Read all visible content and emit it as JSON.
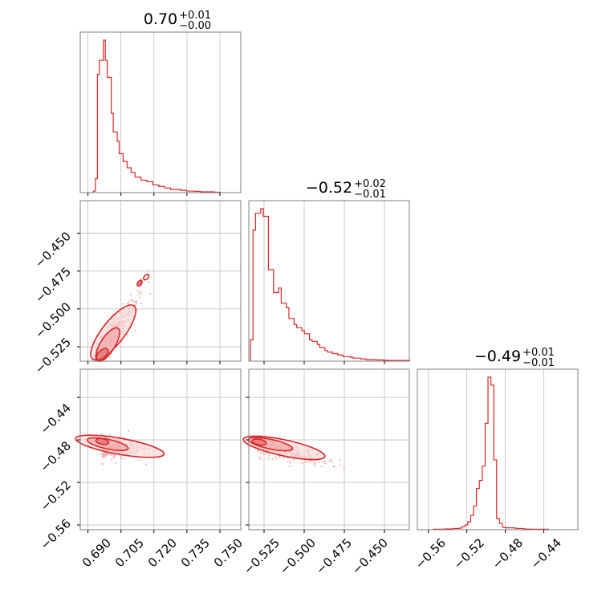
{
  "colors": {
    "accent": "#d62728",
    "fill_inner": "#ee9a9b",
    "fill_outer": "#f6d0d0",
    "scatter": "#f2b8b8",
    "grid": "#bdbdbd",
    "frame": "#7f7f7f"
  },
  "chart_data": {
    "type": "corner",
    "grid": true,
    "parameters": [
      {
        "title": {
          "main": "0.70",
          "upper": "+0.01",
          "lower": "−0.00"
        },
        "ticks": [
          0.69,
          0.705,
          0.72,
          0.735,
          0.75
        ],
        "tick_labels": [
          "0.690",
          "0.705",
          "0.720",
          "0.735",
          "0.750"
        ],
        "range": [
          0.6865,
          0.7595
        ]
      },
      {
        "title": {
          "main": "−0.52",
          "upper": "+0.02",
          "lower": "−0.01"
        },
        "ticks": [
          -0.525,
          -0.5,
          -0.475,
          -0.45
        ],
        "tick_labels": [
          "−0.525",
          "−0.500",
          "−0.475",
          "−0.450"
        ],
        "range": [
          -0.5345,
          -0.4345
        ]
      },
      {
        "title": {
          "main": "−0.49",
          "upper": "+0.01",
          "lower": "−0.01"
        },
        "ticks": [
          -0.56,
          -0.52,
          -0.48,
          -0.44
        ],
        "tick_labels": [
          "−0.56",
          "−0.52",
          "−0.48",
          "−0.44"
        ],
        "range": [
          -0.5715,
          -0.4045
        ]
      }
    ],
    "histograms": [
      {
        "param": 0,
        "bin_edges": [
          0.6925,
          0.6934,
          0.6943,
          0.6952,
          0.6961,
          0.697,
          0.6979,
          0.6988,
          0.6997,
          0.7006,
          0.7015,
          0.7024,
          0.7033,
          0.7042,
          0.7051,
          0.706,
          0.7069,
          0.7078,
          0.7087,
          0.7096,
          0.7105,
          0.7114,
          0.7123,
          0.7132,
          0.7141,
          0.715,
          0.7159,
          0.7168,
          0.7177,
          0.7186,
          0.7195,
          0.7204,
          0.7213,
          0.7222,
          0.7231,
          0.724,
          0.7249,
          0.7258,
          0.7267,
          0.7276,
          0.7285,
          0.7294,
          0.7303,
          0.7312,
          0.7321,
          0.733,
          0.7339,
          0.7348,
          0.7357,
          0.7366,
          0.7375,
          0.7384,
          0.7393,
          0.7402,
          0.7411,
          0.742,
          0.7429,
          0.7438,
          0.7447,
          0.7456,
          0.7465,
          0.7474,
          0.7483,
          0.7492,
          0.7501
        ],
        "counts": [
          0.01,
          0.09,
          0.76,
          0.85,
          0.85,
          0.98,
          0.85,
          0.74,
          0.74,
          0.51,
          0.39,
          0.39,
          0.33,
          0.25,
          0.25,
          0.2,
          0.2,
          0.16,
          0.16,
          0.13,
          0.13,
          0.1,
          0.1,
          0.1,
          0.08,
          0.08,
          0.08,
          0.07,
          0.07,
          0.07,
          0.05,
          0.05,
          0.05,
          0.04,
          0.04,
          0.04,
          0.03,
          0.03,
          0.03,
          0.02,
          0.02,
          0.02,
          0.02,
          0.02,
          0.015,
          0.015,
          0.015,
          0.01,
          0.01,
          0.01,
          0.01,
          0.008,
          0.008,
          0.008,
          0.005,
          0.005,
          0.005,
          0.005,
          0.005,
          0.005,
          0.005,
          0.003,
          0.003,
          0.003
        ]
      },
      {
        "param": 1,
        "bin_edges": [
          -0.5335,
          -0.5319,
          -0.5303,
          -0.5287,
          -0.5271,
          -0.5255,
          -0.5239,
          -0.5223,
          -0.5207,
          -0.5191,
          -0.5175,
          -0.5159,
          -0.5143,
          -0.5127,
          -0.5111,
          -0.5095,
          -0.5079,
          -0.5063,
          -0.5047,
          -0.5031,
          -0.5015,
          -0.4999,
          -0.4983,
          -0.4967,
          -0.4951,
          -0.4935,
          -0.4919,
          -0.4903,
          -0.4887,
          -0.4871,
          -0.4855,
          -0.4839,
          -0.4823,
          -0.4807,
          -0.4791,
          -0.4775,
          -0.4759,
          -0.4743,
          -0.4727,
          -0.4711,
          -0.4695,
          -0.4679,
          -0.4663,
          -0.4647,
          -0.4631,
          -0.4615,
          -0.4599,
          -0.4583,
          -0.4567,
          -0.4551,
          -0.4535,
          -0.4519,
          -0.4503,
          -0.4487,
          -0.4471,
          -0.4455,
          -0.4439,
          -0.4423,
          -0.4407,
          -0.4391,
          -0.4375,
          -0.4359,
          -0.4343
        ],
        "counts": [
          0.14,
          0.86,
          0.97,
          0.97,
          1.0,
          0.95,
          0.95,
          0.6,
          0.6,
          0.45,
          0.45,
          0.48,
          0.38,
          0.38,
          0.35,
          0.28,
          0.28,
          0.24,
          0.22,
          0.22,
          0.2,
          0.18,
          0.18,
          0.14,
          0.13,
          0.13,
          0.11,
          0.09,
          0.09,
          0.07,
          0.06,
          0.06,
          0.05,
          0.05,
          0.04,
          0.04,
          0.03,
          0.03,
          0.03,
          0.025,
          0.02,
          0.02,
          0.02,
          0.015,
          0.015,
          0.01,
          0.01,
          0.01,
          0.01,
          0.008,
          0.008,
          0.008,
          0.006,
          0.006,
          0.005,
          0.005,
          0.005,
          0.005,
          0.005,
          0.005,
          0.005,
          0.005
        ]
      },
      {
        "param": 2,
        "bin_edges": [
          -0.555,
          -0.552,
          -0.549,
          -0.546,
          -0.543,
          -0.54,
          -0.537,
          -0.534,
          -0.531,
          -0.528,
          -0.525,
          -0.522,
          -0.519,
          -0.516,
          -0.513,
          -0.51,
          -0.507,
          -0.504,
          -0.501,
          -0.498,
          -0.495,
          -0.492,
          -0.489,
          -0.486,
          -0.483,
          -0.48,
          -0.477,
          -0.474,
          -0.471,
          -0.468,
          -0.465,
          -0.462,
          -0.459,
          -0.456,
          -0.453,
          -0.45,
          -0.447,
          -0.444,
          -0.441,
          -0.438,
          -0.435
        ],
        "counts": [
          0.003,
          0.003,
          0.003,
          0.003,
          0.005,
          0.005,
          0.005,
          0.008,
          0.008,
          0.01,
          0.02,
          0.03,
          0.05,
          0.09,
          0.15,
          0.26,
          0.31,
          0.4,
          0.67,
          0.96,
          0.91,
          0.44,
          0.07,
          0.04,
          0.015,
          0.012,
          0.012,
          0.012,
          0.01,
          0.008,
          0.008,
          0.006,
          0.004,
          0.004,
          0.003,
          0.003,
          0.003,
          0.003,
          0.003,
          0.003
        ]
      }
    ],
    "pairs": [
      {
        "x_param": 0,
        "y_param": 1,
        "y_ticks": [
          -0.45,
          -0.475,
          -0.5,
          -0.525
        ],
        "y_tick_labels": [
          "−0.450",
          "−0.475",
          "−0.500",
          "−0.525"
        ],
        "y_range": [
          -0.5345,
          -0.4285
        ]
      },
      {
        "x_param": 0,
        "y_param": 2,
        "y_ticks": [
          -0.44,
          -0.48,
          -0.52,
          -0.56
        ],
        "y_tick_labels": [
          "−0.44",
          "−0.48",
          "−0.52",
          "−0.56"
        ],
        "y_range": [
          -0.5645,
          -0.4135
        ]
      },
      {
        "x_param": 1,
        "y_param": 2,
        "y_ticks": [
          -0.44,
          -0.48,
          -0.52,
          -0.56
        ],
        "y_tick_labels": [],
        "y_range": [
          -0.5645,
          -0.4135
        ]
      }
    ]
  }
}
